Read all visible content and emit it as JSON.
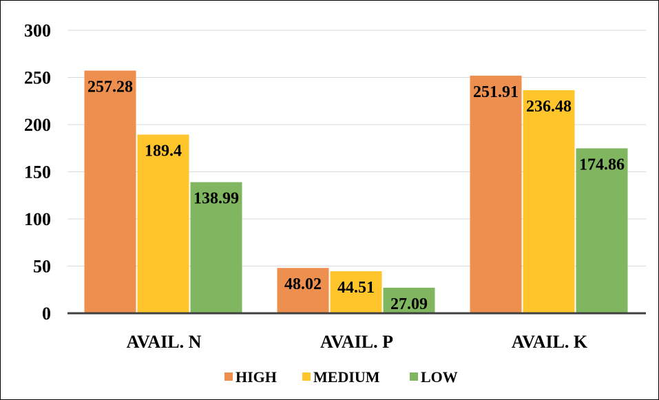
{
  "chart_data": {
    "type": "bar",
    "title": "",
    "xlabel": "",
    "ylabel": "",
    "categories": [
      "AVAIL. N",
      "AVAIL. P",
      "AVAIL. K"
    ],
    "ylim": [
      0,
      300
    ],
    "yticks": [
      0,
      50,
      100,
      150,
      200,
      250,
      300
    ],
    "ytick_labels": [
      "0",
      "50",
      "100",
      "150",
      "200",
      "250",
      "300"
    ],
    "grid": true,
    "legend_position": "bottom",
    "series": [
      {
        "name": "HIGH",
        "color": "#ED8F4F",
        "values": [
          257.28,
          48.02,
          251.91
        ],
        "labels": [
          "257.28",
          "48.02",
          "251.91"
        ]
      },
      {
        "name": "MEDIUM",
        "color": "#FFC52A",
        "values": [
          189.4,
          44.51,
          236.48
        ],
        "labels": [
          "189.4",
          "44.51",
          "236.48"
        ]
      },
      {
        "name": "LOW",
        "color": "#7FB65F",
        "values": [
          138.99,
          27.09,
          174.86
        ],
        "labels": [
          "138.99",
          "27.09",
          "174.86"
        ]
      }
    ]
  }
}
